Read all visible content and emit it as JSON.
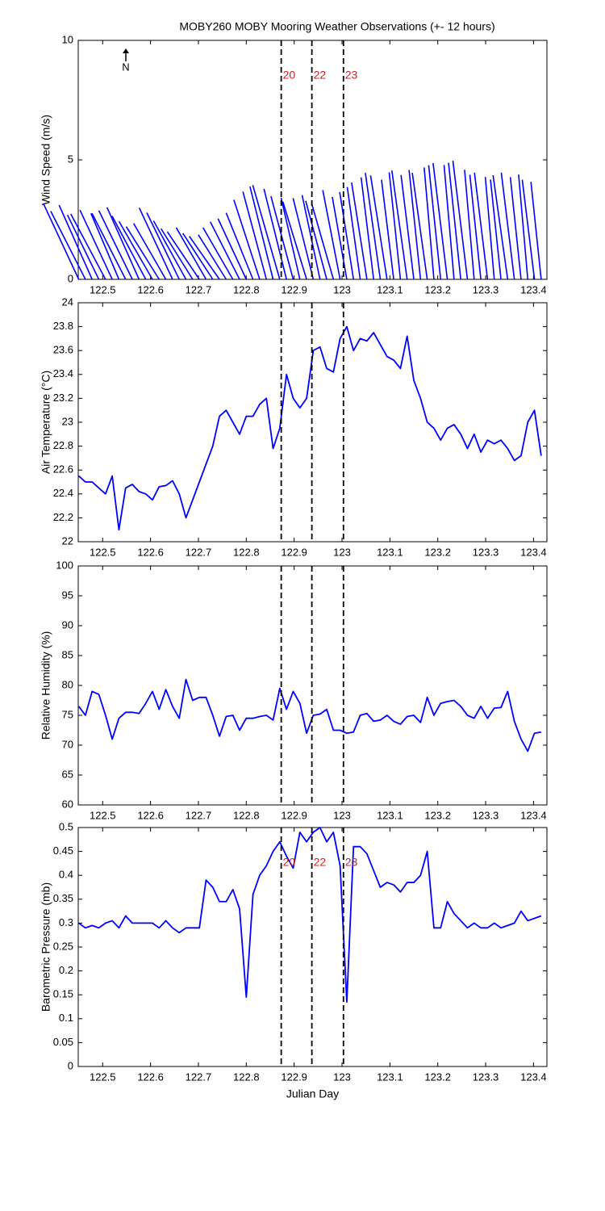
{
  "chart_data": [
    {
      "type": "stick",
      "title": "MOBY260 MOBY Mooring Weather Observations (+- 12 hours)",
      "ylabel": "Wind Speed (m/s)",
      "north_label": "N",
      "color": "#0000ff",
      "x": [
        122.45,
        122.464,
        122.478,
        122.492,
        122.506,
        122.52,
        122.534,
        122.548,
        122.562,
        122.576,
        122.59,
        122.604,
        122.618,
        122.632,
        122.646,
        122.66,
        122.674,
        122.688,
        122.702,
        122.716,
        122.73,
        122.744,
        122.758,
        122.772,
        122.786,
        122.8,
        122.814,
        122.828,
        122.842,
        122.856,
        122.87,
        122.884,
        122.898,
        122.912,
        122.926,
        122.94,
        122.954,
        122.968,
        122.982,
        122.996,
        123.01,
        123.024,
        123.038,
        123.052,
        123.066,
        123.08,
        123.094,
        123.108,
        123.122,
        123.136,
        123.15,
        123.164,
        123.178,
        123.192,
        123.206,
        123.22,
        123.234,
        123.248,
        123.262,
        123.276,
        123.29,
        123.304,
        123.318,
        123.332,
        123.346,
        123.36,
        123.374,
        123.388,
        123.402,
        123.416
      ],
      "speed": [
        3.5,
        3.2,
        3.4,
        3.0,
        3.1,
        3.2,
        3.0,
        3.1,
        3.2,
        3.3,
        3.0,
        2.8,
        2.6,
        2.7,
        3.3,
        3.1,
        2.8,
        2.5,
        2.4,
        2.5,
        2.3,
        2.2,
        2.2,
        2.5,
        2.7,
        2.8,
        3.0,
        3.5,
        3.8,
        4.0,
        4.1,
        3.9,
        3.6,
        3.5,
        3.4,
        3.5,
        3.6,
        3.4,
        3.3,
        3.8,
        3.5,
        3.7,
        3.9,
        4.1,
        4.3,
        4.5,
        4.4,
        4.2,
        4.5,
        4.6,
        4.4,
        4.6,
        4.5,
        4.7,
        4.8,
        4.9,
        4.8,
        4.9,
        5.0,
        4.6,
        4.4,
        4.5,
        4.3,
        4.2,
        4.4,
        4.5,
        4.3,
        4.4,
        4.2,
        4.1
      ],
      "direction": [
        335,
        333,
        336,
        334,
        332,
        335,
        337,
        333,
        334,
        336,
        332,
        330,
        328,
        330,
        335,
        334,
        331,
        328,
        326,
        330,
        327,
        325,
        328,
        330,
        333,
        335,
        338,
        342,
        345,
        346,
        344,
        346,
        345,
        347,
        343,
        346,
        348,
        345,
        344,
        349,
        350,
        351,
        352,
        351,
        353,
        352,
        351,
        353,
        354,
        352,
        353,
        354,
        352,
        355,
        354,
        353,
        355,
        354,
        353,
        355,
        354,
        353,
        355,
        354,
        352,
        353,
        354,
        355,
        353,
        354
      ],
      "xlim": [
        122.449,
        123.428
      ],
      "xticks": [
        122.5,
        122.6,
        122.7,
        122.8,
        122.9,
        123,
        123.1,
        123.2,
        123.3,
        123.4
      ],
      "ylim": [
        0,
        10
      ],
      "yticks": [
        0,
        5,
        10
      ],
      "markers": [
        {
          "x": 122.873,
          "label": "20"
        },
        {
          "x": 122.937,
          "label": "22"
        },
        {
          "x": 123.003,
          "label": "23"
        }
      ],
      "marker_color": "#cc2222"
    },
    {
      "type": "line",
      "ylabel": "Air Temperature (°C)",
      "color": "#0000ff",
      "x": [
        122.45,
        122.464,
        122.478,
        122.492,
        122.506,
        122.52,
        122.534,
        122.548,
        122.562,
        122.576,
        122.59,
        122.604,
        122.618,
        122.632,
        122.646,
        122.66,
        122.674,
        122.688,
        122.702,
        122.716,
        122.73,
        122.744,
        122.758,
        122.772,
        122.786,
        122.8,
        122.814,
        122.828,
        122.842,
        122.856,
        122.87,
        122.884,
        122.898,
        122.912,
        122.926,
        122.94,
        122.954,
        122.968,
        122.982,
        122.996,
        123.01,
        123.024,
        123.038,
        123.052,
        123.066,
        123.08,
        123.094,
        123.108,
        123.122,
        123.136,
        123.15,
        123.164,
        123.178,
        123.192,
        123.206,
        123.22,
        123.234,
        123.248,
        123.262,
        123.276,
        123.29,
        123.304,
        123.318,
        123.332,
        123.346,
        123.36,
        123.374,
        123.388,
        123.402,
        123.416
      ],
      "values": [
        22.55,
        22.5,
        22.5,
        22.45,
        22.4,
        22.55,
        22.1,
        22.45,
        22.48,
        22.42,
        22.4,
        22.35,
        22.46,
        22.47,
        22.51,
        22.4,
        22.2,
        22.35,
        22.5,
        22.65,
        22.8,
        23.05,
        23.1,
        23.0,
        22.9,
        23.05,
        23.05,
        23.15,
        23.2,
        22.78,
        22.95,
        23.4,
        23.2,
        23.12,
        23.2,
        23.6,
        23.63,
        23.45,
        23.42,
        23.7,
        23.8,
        23.6,
        23.7,
        23.68,
        23.75,
        23.65,
        23.55,
        23.52,
        23.45,
        23.72,
        23.35,
        23.2,
        23.0,
        22.95,
        22.85,
        22.95,
        22.98,
        22.9,
        22.78,
        22.9,
        22.75,
        22.85,
        22.82,
        22.85,
        22.78,
        22.68,
        22.72,
        23.0,
        23.1,
        22.72
      ],
      "xlim": [
        122.449,
        123.428
      ],
      "xticks": [
        122.5,
        122.6,
        122.7,
        122.8,
        122.9,
        123,
        123.1,
        123.2,
        123.3,
        123.4
      ],
      "ylim": [
        22,
        24
      ],
      "yticks": [
        22,
        22.2,
        22.4,
        22.6,
        22.8,
        23,
        23.2,
        23.4,
        23.6,
        23.8,
        24
      ],
      "markers": [
        {
          "x": 122.873
        },
        {
          "x": 122.937
        },
        {
          "x": 123.003
        }
      ]
    },
    {
      "type": "line",
      "ylabel": "Relative Humidity (%)",
      "color": "#0000ff",
      "x": [
        122.45,
        122.464,
        122.478,
        122.492,
        122.506,
        122.52,
        122.534,
        122.548,
        122.562,
        122.576,
        122.59,
        122.604,
        122.618,
        122.632,
        122.646,
        122.66,
        122.674,
        122.688,
        122.702,
        122.716,
        122.73,
        122.744,
        122.758,
        122.772,
        122.786,
        122.8,
        122.814,
        122.828,
        122.842,
        122.856,
        122.87,
        122.884,
        122.898,
        122.912,
        122.926,
        122.94,
        122.954,
        122.968,
        122.982,
        122.996,
        123.01,
        123.024,
        123.038,
        123.052,
        123.066,
        123.08,
        123.094,
        123.108,
        123.122,
        123.136,
        123.15,
        123.164,
        123.178,
        123.192,
        123.206,
        123.22,
        123.234,
        123.248,
        123.262,
        123.276,
        123.29,
        123.304,
        123.318,
        123.332,
        123.346,
        123.36,
        123.374,
        123.388,
        123.402,
        123.416
      ],
      "values": [
        76.5,
        75,
        79,
        78.5,
        75,
        71,
        74.5,
        75.5,
        75.5,
        75.3,
        77,
        79,
        76,
        79.3,
        76.5,
        74.5,
        81,
        77.5,
        78,
        78,
        75,
        71.5,
        74.8,
        75,
        72.5,
        74.5,
        74.5,
        74.8,
        75,
        74.2,
        79.5,
        76,
        79,
        77,
        72,
        75,
        75.2,
        76,
        72.5,
        72.5,
        72,
        72.2,
        75,
        75.3,
        74,
        74.2,
        75,
        74,
        73.5,
        74.8,
        75,
        73.8,
        78,
        75,
        77,
        77.3,
        77.5,
        76.5,
        75,
        74.5,
        76.5,
        74.5,
        76.2,
        76.3,
        79,
        74,
        71,
        69,
        72,
        72.2
      ],
      "xlim": [
        122.449,
        123.428
      ],
      "xticks": [
        122.5,
        122.6,
        122.7,
        122.8,
        122.9,
        123,
        123.1,
        123.2,
        123.3,
        123.4
      ],
      "ylim": [
        60,
        100
      ],
      "yticks": [
        60,
        65,
        70,
        75,
        80,
        85,
        90,
        95,
        100
      ],
      "markers": [
        {
          "x": 122.873
        },
        {
          "x": 122.937
        },
        {
          "x": 123.003
        }
      ]
    },
    {
      "type": "line",
      "ylabel": "Barometric Pressure (mb)",
      "xlabel": "Julian Day",
      "color": "#0000ff",
      "x": [
        122.45,
        122.464,
        122.478,
        122.492,
        122.506,
        122.52,
        122.534,
        122.548,
        122.562,
        122.576,
        122.59,
        122.604,
        122.618,
        122.632,
        122.646,
        122.66,
        122.674,
        122.688,
        122.702,
        122.716,
        122.73,
        122.744,
        122.758,
        122.772,
        122.786,
        122.8,
        122.814,
        122.828,
        122.842,
        122.856,
        122.87,
        122.884,
        122.898,
        122.912,
        122.926,
        122.94,
        122.954,
        122.968,
        122.982,
        122.996,
        123.01,
        123.024,
        123.038,
        123.052,
        123.066,
        123.08,
        123.094,
        123.108,
        123.122,
        123.136,
        123.15,
        123.164,
        123.178,
        123.192,
        123.206,
        123.22,
        123.234,
        123.248,
        123.262,
        123.276,
        123.29,
        123.304,
        123.318,
        123.332,
        123.346,
        123.36,
        123.374,
        123.388,
        123.402,
        123.416
      ],
      "values": [
        0.3,
        0.29,
        0.295,
        0.29,
        0.3,
        0.305,
        0.29,
        0.315,
        0.3,
        0.3,
        0.3,
        0.3,
        0.29,
        0.305,
        0.29,
        0.28,
        0.29,
        0.29,
        0.29,
        0.39,
        0.375,
        0.345,
        0.345,
        0.37,
        0.33,
        0.145,
        0.36,
        0.4,
        0.42,
        0.45,
        0.47,
        0.44,
        0.415,
        0.49,
        0.47,
        0.49,
        0.5,
        0.47,
        0.49,
        0.42,
        0.135,
        0.46,
        0.46,
        0.445,
        0.41,
        0.375,
        0.385,
        0.38,
        0.365,
        0.385,
        0.385,
        0.4,
        0.45,
        0.29,
        0.29,
        0.345,
        0.32,
        0.305,
        0.29,
        0.3,
        0.29,
        0.29,
        0.3,
        0.29,
        0.295,
        0.3,
        0.325,
        0.305,
        0.31,
        0.315
      ],
      "xlim": [
        122.449,
        123.428
      ],
      "xticks": [
        122.5,
        122.6,
        122.7,
        122.8,
        122.9,
        123,
        123.1,
        123.2,
        123.3,
        123.4
      ],
      "ylim": [
        0,
        0.5
      ],
      "yticks": [
        0,
        0.05,
        0.1,
        0.15,
        0.2,
        0.25,
        0.3,
        0.35,
        0.4,
        0.45,
        0.5
      ],
      "markers": [
        {
          "x": 122.873,
          "label": "20"
        },
        {
          "x": 122.937,
          "label": "22"
        },
        {
          "x": 123.003,
          "label": "23"
        }
      ],
      "marker_color": "#cc2222"
    }
  ]
}
